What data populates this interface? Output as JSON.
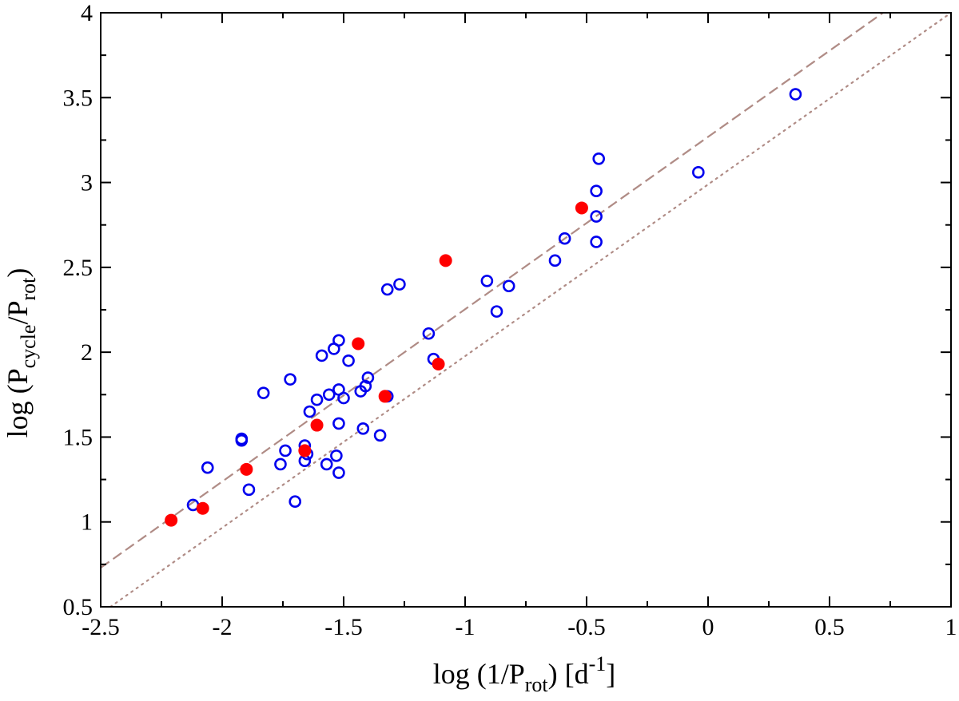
{
  "chart_data": {
    "type": "scatter",
    "title": "",
    "xlabel": "log (1/P_rot) [d^-1]",
    "ylabel": "log (P_cycle/P_rot)",
    "xlabel_parts": {
      "pre": "log (1/P",
      "sub1": "rot",
      "mid": ") [d",
      "sup": "-1",
      "post": "]"
    },
    "ylabel_parts": {
      "pre": "log (P",
      "sub1": "cycle",
      "mid": "/P",
      "sub2": "rot",
      "post": ")"
    },
    "xlim": [
      -2.5,
      1
    ],
    "ylim": [
      0.5,
      4
    ],
    "xticks": [
      "-2.5",
      "-2",
      "-1.5",
      "-1",
      "-0.5",
      "0",
      "0.5",
      "1"
    ],
    "yticks": [
      "0.5",
      "1",
      "1.5",
      "2",
      "2.5",
      "3",
      "3.5",
      "4"
    ],
    "grid": false,
    "series": [
      {
        "name": "open circles",
        "marker": "open-circle",
        "color": "#0000ee",
        "points": [
          [
            -2.12,
            1.1
          ],
          [
            -2.06,
            1.32
          ],
          [
            -1.92,
            1.48
          ],
          [
            -1.92,
            1.49
          ],
          [
            -1.89,
            1.19
          ],
          [
            -1.83,
            1.76
          ],
          [
            -1.76,
            1.34
          ],
          [
            -1.74,
            1.42
          ],
          [
            -1.72,
            1.84
          ],
          [
            -1.7,
            1.12
          ],
          [
            -1.66,
            1.45
          ],
          [
            -1.66,
            1.36
          ],
          [
            -1.65,
            1.4
          ],
          [
            -1.64,
            1.65
          ],
          [
            -1.61,
            1.72
          ],
          [
            -1.59,
            1.98
          ],
          [
            -1.57,
            1.34
          ],
          [
            -1.56,
            1.75
          ],
          [
            -1.54,
            2.02
          ],
          [
            -1.53,
            1.39
          ],
          [
            -1.52,
            1.29
          ],
          [
            -1.52,
            1.78
          ],
          [
            -1.52,
            1.58
          ],
          [
            -1.52,
            2.07
          ],
          [
            -1.5,
            1.73
          ],
          [
            -1.48,
            1.95
          ],
          [
            -1.43,
            1.77
          ],
          [
            -1.42,
            1.55
          ],
          [
            -1.41,
            1.8
          ],
          [
            -1.4,
            1.85
          ],
          [
            -1.35,
            1.51
          ],
          [
            -1.32,
            2.37
          ],
          [
            -1.32,
            1.74
          ],
          [
            -1.27,
            2.4
          ],
          [
            -1.15,
            2.11
          ],
          [
            -1.13,
            1.96
          ],
          [
            -0.91,
            2.42
          ],
          [
            -0.87,
            2.24
          ],
          [
            -0.82,
            2.39
          ],
          [
            -0.63,
            2.54
          ],
          [
            -0.59,
            2.67
          ],
          [
            -0.46,
            2.65
          ],
          [
            -0.46,
            2.8
          ],
          [
            -0.46,
            2.95
          ],
          [
            -0.45,
            3.14
          ],
          [
            -0.04,
            3.06
          ],
          [
            0.36,
            3.52
          ]
        ]
      },
      {
        "name": "filled circles",
        "marker": "filled-circle",
        "color": "#ff0000",
        "points": [
          [
            -2.21,
            1.01
          ],
          [
            -2.08,
            1.08
          ],
          [
            -1.9,
            1.31
          ],
          [
            -1.66,
            1.42
          ],
          [
            -1.61,
            1.57
          ],
          [
            -1.44,
            2.05
          ],
          [
            -1.33,
            1.74
          ],
          [
            -1.11,
            1.93
          ],
          [
            -1.08,
            2.54
          ],
          [
            -0.52,
            2.85
          ]
        ]
      }
    ],
    "lines": [
      {
        "name": "dashed fit",
        "style": "dashed",
        "color": "#b08c86",
        "x": [
          -2.5,
          0.72
        ],
        "y": [
          0.73,
          4.0
        ]
      },
      {
        "name": "dotted one-to-one",
        "style": "dotted",
        "color": "#b08c86",
        "x": [
          -2.46,
          1.0
        ],
        "y": [
          0.5,
          4.0
        ]
      }
    ]
  }
}
